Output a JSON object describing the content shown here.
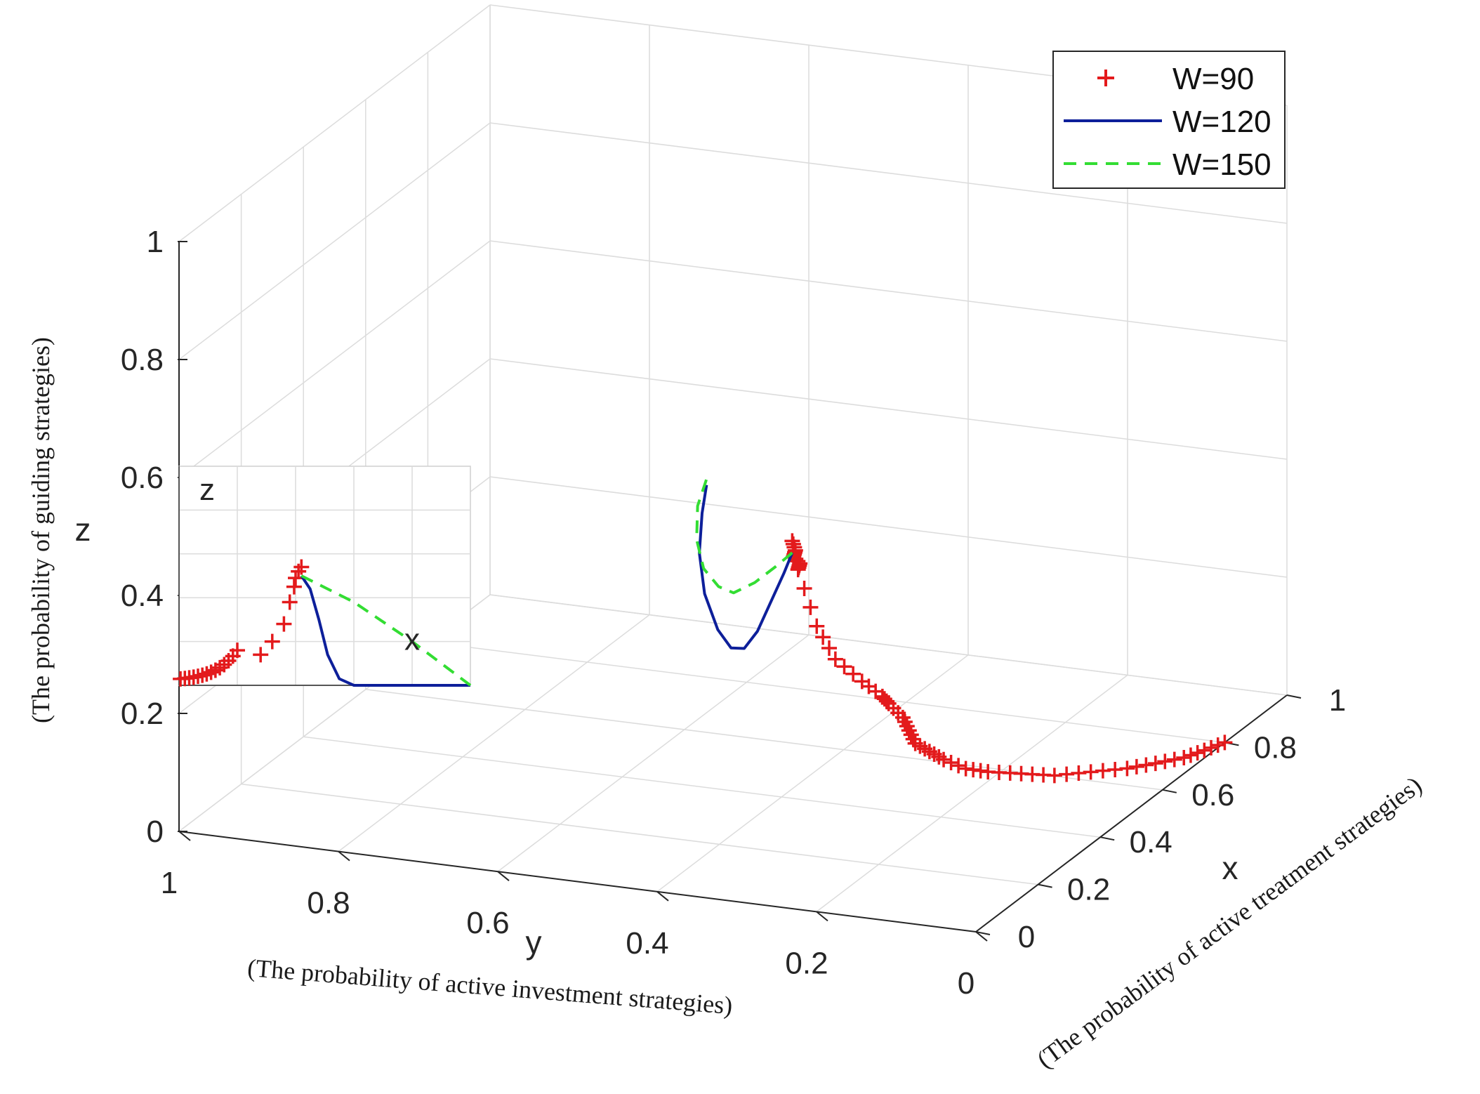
{
  "chart_data": {
    "type": "line3d",
    "title": "",
    "axes": {
      "x": {
        "label": "x",
        "description": "(The probability of active treatment strategies)",
        "lim": [
          0,
          1
        ],
        "ticks": [
          "0",
          "0.2",
          "0.4",
          "0.6",
          "0.8",
          "1"
        ]
      },
      "y": {
        "label": "y",
        "description": "(The probability of active investment strategies)",
        "lim": [
          0,
          1
        ],
        "ticks": [
          "0",
          "0.2",
          "0.4",
          "0.6",
          "0.8",
          "1"
        ]
      },
      "z": {
        "label": "z",
        "description": "(The probability of guiding strategies)",
        "lim": [
          0,
          1
        ],
        "ticks": [
          "0",
          "0.2",
          "0.4",
          "0.6",
          "0.8",
          "1"
        ]
      }
    },
    "grid": true,
    "legend": {
      "position": "top-right",
      "entries": [
        {
          "label": "W=90",
          "color": "#e31a1c",
          "style": "plus-markers"
        },
        {
          "label": "W=120",
          "color": "#0d1f9a",
          "style": "solid"
        },
        {
          "label": "W=150",
          "color": "#33dd33",
          "style": "dashed"
        }
      ]
    },
    "series": [
      {
        "name": "W=90",
        "points": [
          [
            0.05,
            0.25,
            0.6
          ],
          [
            0.06,
            0.25,
            0.58
          ],
          [
            0.08,
            0.26,
            0.56
          ],
          [
            0.1,
            0.26,
            0.54
          ],
          [
            0.12,
            0.27,
            0.52
          ],
          [
            0.18,
            0.27,
            0.4
          ],
          [
            0.24,
            0.27,
            0.32
          ],
          [
            0.3,
            0.26,
            0.26
          ],
          [
            0.34,
            0.25,
            0.22
          ],
          [
            0.36,
            0.25,
            0.2
          ],
          [
            0.38,
            0.24,
            0.17
          ],
          [
            0.4,
            0.24,
            0.14
          ],
          [
            0.42,
            0.24,
            0.11
          ],
          [
            0.44,
            0.23,
            0.09
          ],
          [
            0.46,
            0.22,
            0.07
          ],
          [
            0.48,
            0.2,
            0.05
          ],
          [
            0.5,
            0.18,
            0.04
          ],
          [
            0.53,
            0.15,
            0.03
          ],
          [
            0.56,
            0.12,
            0.02
          ],
          [
            0.6,
            0.09,
            0.015
          ],
          [
            0.64,
            0.06,
            0.01
          ],
          [
            0.68,
            0.04,
            0.006
          ],
          [
            0.72,
            0.02,
            0.003
          ],
          [
            0.76,
            0.01,
            0.001
          ],
          [
            0.8,
            0.0,
            0.0
          ]
        ]
      },
      {
        "name": "W=120",
        "points": [
          [
            0.05,
            0.25,
            0.58
          ],
          [
            0.1,
            0.28,
            0.52
          ],
          [
            0.16,
            0.32,
            0.44
          ],
          [
            0.22,
            0.36,
            0.36
          ],
          [
            0.28,
            0.4,
            0.3
          ],
          [
            0.34,
            0.44,
            0.27
          ],
          [
            0.4,
            0.48,
            0.27
          ],
          [
            0.46,
            0.52,
            0.3
          ],
          [
            0.52,
            0.55,
            0.34
          ],
          [
            0.58,
            0.57,
            0.38
          ],
          [
            0.62,
            0.58,
            0.41
          ]
        ]
      },
      {
        "name": "W=150",
        "points": [
          [
            0.05,
            0.25,
            0.58
          ],
          [
            0.1,
            0.29,
            0.53
          ],
          [
            0.16,
            0.34,
            0.47
          ],
          [
            0.22,
            0.39,
            0.42
          ],
          [
            0.3,
            0.44,
            0.39
          ],
          [
            0.38,
            0.49,
            0.38
          ],
          [
            0.46,
            0.53,
            0.39
          ],
          [
            0.54,
            0.56,
            0.41
          ],
          [
            0.62,
            0.58,
            0.42
          ]
        ]
      }
    ],
    "inset": {
      "label": "z",
      "note": "zoomed 2D view of the peak region of z",
      "marker_label": "x"
    }
  }
}
